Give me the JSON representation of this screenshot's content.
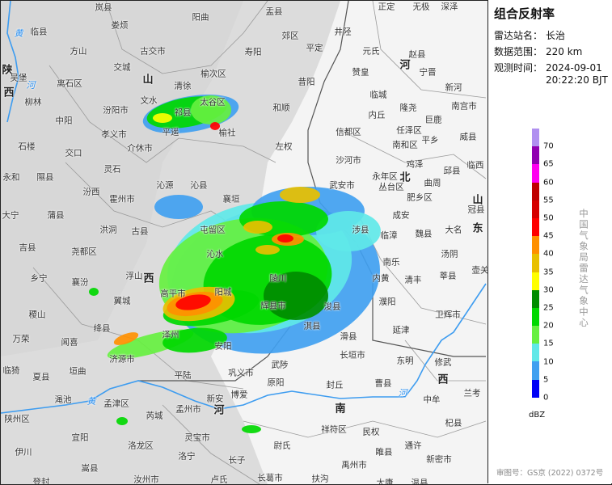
{
  "panel": {
    "title": "组合反射率",
    "station_label": "雷达站名：",
    "station": "长治",
    "range_label": "数据范围：",
    "range": "220 km",
    "time_label": "观测时间：",
    "date": "2024-09-01",
    "time": "20:22:20 BJT",
    "unit": "dBZ",
    "organization": "中国气象局雷达气象中心",
    "approval": "审图号：GS京 (2022) 0372号"
  },
  "legend": {
    "ticks": [
      "70",
      "65",
      "60",
      "55",
      "50",
      "45",
      "40",
      "35",
      "30",
      "25",
      "20",
      "15",
      "10",
      "5",
      "0"
    ],
    "colors": [
      "#b090f0",
      "#9000b0",
      "#ff00f0",
      "#bf0000",
      "#d60000",
      "#ff0000",
      "#ff9000",
      "#e8c000",
      "#ffff00",
      "#008c00",
      "#00d800",
      "#66f040",
      "#60e8e8",
      "#40a0f0",
      "#0000f6"
    ]
  },
  "map": {
    "provinces": [
      "山",
      "西",
      "陕",
      "西",
      "河",
      "北",
      "山",
      "东",
      "河",
      "南",
      "西"
    ],
    "rivers": [
      "黄",
      "河",
      "黄",
      "河",
      "河"
    ],
    "places": [
      "岚县",
      "临县",
      "娄烦",
      "阳曲",
      "方山",
      "古交市",
      "交城",
      "清徐",
      "榆次区",
      "离石区",
      "柳林",
      "文水",
      "汾阳市",
      "祁县",
      "太谷区",
      "中阳",
      "孝义市",
      "平遥",
      "榆社",
      "介休市",
      "石楼",
      "交口",
      "灵石",
      "永和",
      "隰县",
      "汾西",
      "沁源",
      "沁县",
      "霍州市",
      "大宁",
      "蒲县",
      "洪洞",
      "古县",
      "屯留区",
      "襄垣",
      "吴堡",
      "盂县",
      "正定",
      "无极",
      "深泽",
      "郊区",
      "井陉",
      "平定",
      "元氏",
      "寿阳",
      "赵县",
      "宁晋",
      "赞皇",
      "昔阳",
      "新河",
      "临城",
      "和顺",
      "隆尧",
      "南宫市",
      "内丘",
      "巨鹿",
      "信都区",
      "任泽区",
      "平乡",
      "威县",
      "左权",
      "南和区",
      "沙河市",
      "鸡泽",
      "邱县",
      "临西",
      "永年区",
      "丛台区",
      "曲周",
      "武安市",
      "肥乡区",
      "成安",
      "冠县",
      "魏县",
      "大名",
      "临漳",
      "涉县",
      "吉县",
      "尧都区",
      "乡宁",
      "浮山",
      "襄汾",
      "翼城",
      "稷山",
      "绛县",
      "万荣",
      "闻喜",
      "临猗",
      "夏县",
      "垣曲",
      "济源市",
      "平陆",
      "渑池",
      "孟津区",
      "孟州市",
      "新安",
      "芮城",
      "陕州区",
      "宜阳",
      "洛龙区",
      "灵宝市",
      "伊川",
      "洛宁",
      "嵩县",
      "汝州市",
      "卢氏",
      "登封",
      "长子",
      "沁水",
      "高平市",
      "阳城",
      "泽州",
      "安阳",
      "南乐",
      "汤阴",
      "内黄",
      "清丰",
      "莘县",
      "壶关",
      "陵川",
      "辉县市",
      "淇县",
      "浚县",
      "濮阳",
      "卫辉市",
      "滑县",
      "延津",
      "长垣市",
      "东明",
      "修武",
      "武陟",
      "原阳",
      "封丘",
      "曹县",
      "兰考",
      "中牟",
      "祥符区",
      "民权",
      "杞县",
      "通许",
      "睢县",
      "新密市",
      "尉氏",
      "禹州市",
      "长葛市",
      "扶沟",
      "太康",
      "温县",
      "博爱",
      "巩义市"
    ]
  }
}
